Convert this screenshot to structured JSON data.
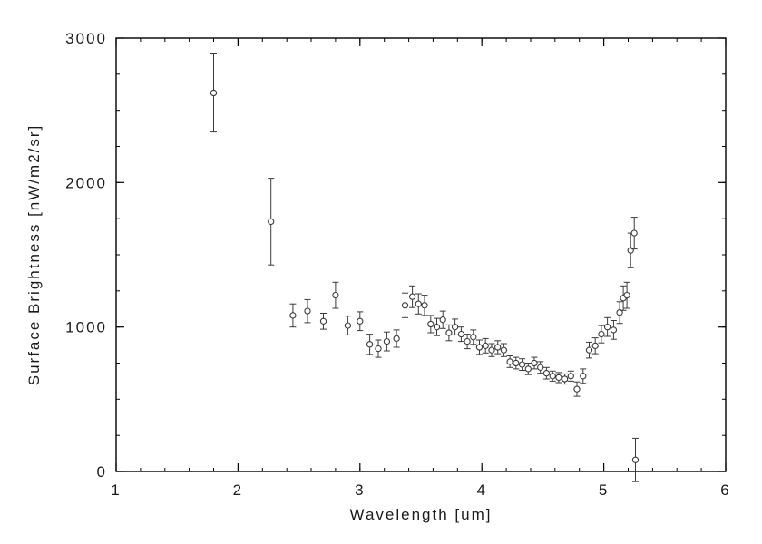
{
  "figure": {
    "background": "#ffffff"
  },
  "chart_data": {
    "type": "scatter",
    "title": "",
    "xlabel": "Wavelength [um]",
    "ylabel": "Surface Brightness [nW/m2/sr]",
    "xlim": [
      1,
      6
    ],
    "ylim": [
      0,
      3000
    ],
    "xticks": [
      1,
      2,
      3,
      4,
      5,
      6
    ],
    "yticks": [
      0,
      1000,
      2000,
      3000
    ],
    "x_minor_step": 0.2,
    "y_minor_step": 250,
    "grid": false,
    "legend": "none",
    "marker": "open-circle",
    "error_bars": "vertical",
    "colors": {
      "axes": "#000000",
      "data": "#3a3a3a",
      "background": "#ffffff"
    },
    "points_format": [
      "wavelength_um",
      "surface_brightness_nW_m2_sr",
      "error"
    ],
    "points": [
      [
        1.8,
        2620,
        270
      ],
      [
        2.27,
        1730,
        300
      ],
      [
        2.45,
        1080,
        80
      ],
      [
        2.57,
        1110,
        80
      ],
      [
        2.7,
        1040,
        55
      ],
      [
        2.8,
        1220,
        90
      ],
      [
        2.9,
        1010,
        65
      ],
      [
        3.0,
        1040,
        65
      ],
      [
        3.08,
        880,
        70
      ],
      [
        3.15,
        850,
        60
      ],
      [
        3.22,
        900,
        65
      ],
      [
        3.3,
        920,
        60
      ],
      [
        3.37,
        1150,
        85
      ],
      [
        3.43,
        1210,
        75
      ],
      [
        3.48,
        1160,
        70
      ],
      [
        3.53,
        1150,
        70
      ],
      [
        3.58,
        1020,
        60
      ],
      [
        3.63,
        1000,
        60
      ],
      [
        3.68,
        1050,
        60
      ],
      [
        3.73,
        960,
        55
      ],
      [
        3.78,
        1000,
        55
      ],
      [
        3.83,
        950,
        50
      ],
      [
        3.88,
        900,
        50
      ],
      [
        3.93,
        930,
        50
      ],
      [
        3.98,
        860,
        50
      ],
      [
        4.03,
        870,
        50
      ],
      [
        4.08,
        840,
        45
      ],
      [
        4.13,
        860,
        45
      ],
      [
        4.18,
        840,
        45
      ],
      [
        4.23,
        760,
        40
      ],
      [
        4.28,
        750,
        40
      ],
      [
        4.33,
        740,
        40
      ],
      [
        4.38,
        710,
        40
      ],
      [
        4.43,
        750,
        40
      ],
      [
        4.48,
        720,
        40
      ],
      [
        4.53,
        680,
        40
      ],
      [
        4.58,
        660,
        35
      ],
      [
        4.63,
        650,
        35
      ],
      [
        4.68,
        640,
        35
      ],
      [
        4.73,
        660,
        35
      ],
      [
        4.78,
        570,
        50
      ],
      [
        4.83,
        660,
        50
      ],
      [
        4.88,
        840,
        55
      ],
      [
        4.93,
        870,
        55
      ],
      [
        4.98,
        950,
        60
      ],
      [
        5.03,
        1000,
        65
      ],
      [
        5.08,
        980,
        65
      ],
      [
        5.13,
        1100,
        75
      ],
      [
        5.16,
        1200,
        85
      ],
      [
        5.19,
        1220,
        90
      ],
      [
        5.22,
        1530,
        120
      ],
      [
        5.25,
        1650,
        110
      ],
      [
        5.26,
        80,
        150
      ]
    ]
  }
}
